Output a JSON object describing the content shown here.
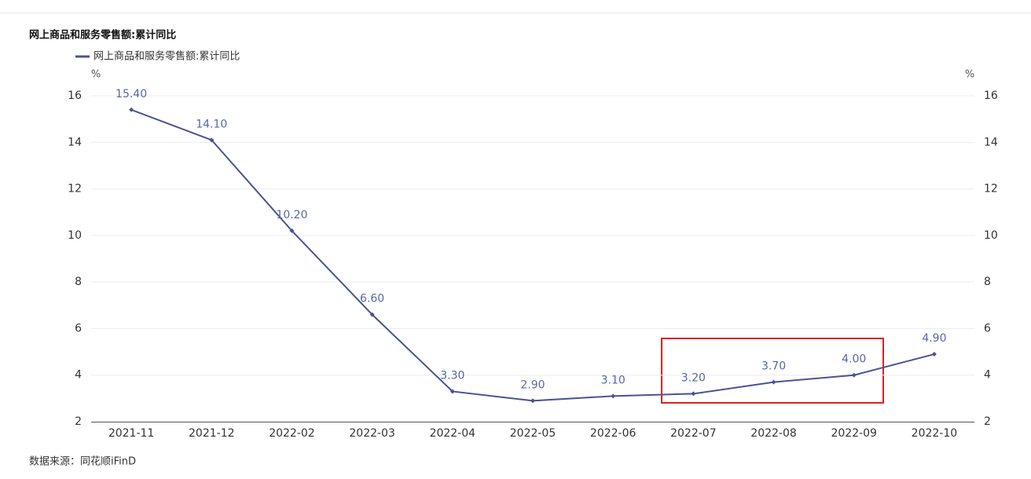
{
  "chart_data": {
    "type": "line",
    "title": "网上商品和服务零售额:累计同比",
    "y_unit": "%",
    "y2_unit": "%",
    "source": "数据来源：同花顺iFinD",
    "categories": [
      "2021-11",
      "2021-12",
      "2022-02",
      "2022-03",
      "2022-04",
      "2022-05",
      "2022-06",
      "2022-07",
      "2022-08",
      "2022-09",
      "2022-10"
    ],
    "series": [
      {
        "name": "网上商品和服务零售额:累计同比",
        "color": "#4a5394",
        "values": [
          15.4,
          14.1,
          10.2,
          6.6,
          3.3,
          2.9,
          3.1,
          3.2,
          3.7,
          4.0,
          4.9
        ],
        "value_labels": [
          "15.40",
          "14.10",
          "10.20",
          "6.60",
          "3.30",
          "2.90",
          "3.10",
          "3.20",
          "3.70",
          "4.00",
          "4.90"
        ]
      }
    ],
    "ylim": [
      2,
      16
    ],
    "yticks": [
      2,
      4,
      6,
      8,
      10,
      12,
      14,
      16
    ],
    "y2lim": [
      2,
      16
    ],
    "y2ticks": [
      2,
      4,
      6,
      8,
      10,
      12,
      14,
      16
    ],
    "grid": true
  }
}
